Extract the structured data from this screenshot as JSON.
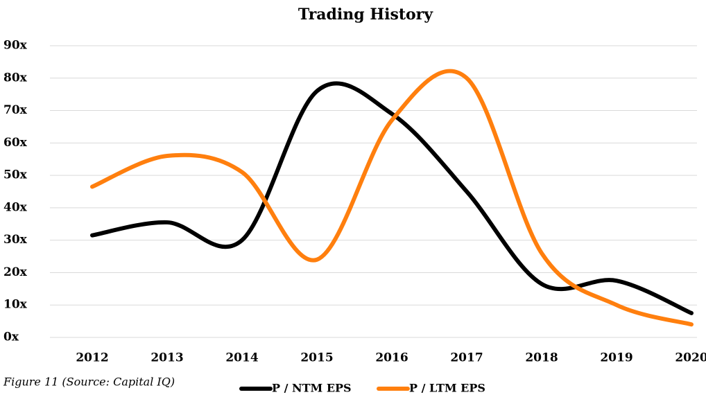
{
  "chart_data": {
    "type": "line",
    "title": "Trading History",
    "caption": "Figure 11 (Source: Capital IQ)",
    "categories": [
      "2012",
      "2013",
      "2014",
      "2015",
      "2016",
      "2017",
      "2018",
      "2019",
      "2020"
    ],
    "series": [
      {
        "name": "P / NTM EPS",
        "color": "#000000",
        "values": [
          31.5,
          35.5,
          30,
          76,
          69,
          45,
          16.5,
          17.5,
          7.5
        ]
      },
      {
        "name": "P / LTM EPS",
        "color": "#ff7f0e",
        "values": [
          46.5,
          56,
          51,
          24,
          67,
          80,
          26,
          10,
          4
        ]
      }
    ],
    "ylim": [
      0,
      90
    ],
    "yticks": [
      {
        "value": 0,
        "label": "0x"
      },
      {
        "value": 10,
        "label": "10x"
      },
      {
        "value": 20,
        "label": "20x"
      },
      {
        "value": 30,
        "label": "30x"
      },
      {
        "value": 40,
        "label": "40x"
      },
      {
        "value": 50,
        "label": "50x"
      },
      {
        "value": 60,
        "label": "60x"
      },
      {
        "value": 70,
        "label": "70x"
      },
      {
        "value": 80,
        "label": "80x"
      },
      {
        "value": 90,
        "label": "90x"
      }
    ],
    "grid": true,
    "legend": "bottom"
  }
}
